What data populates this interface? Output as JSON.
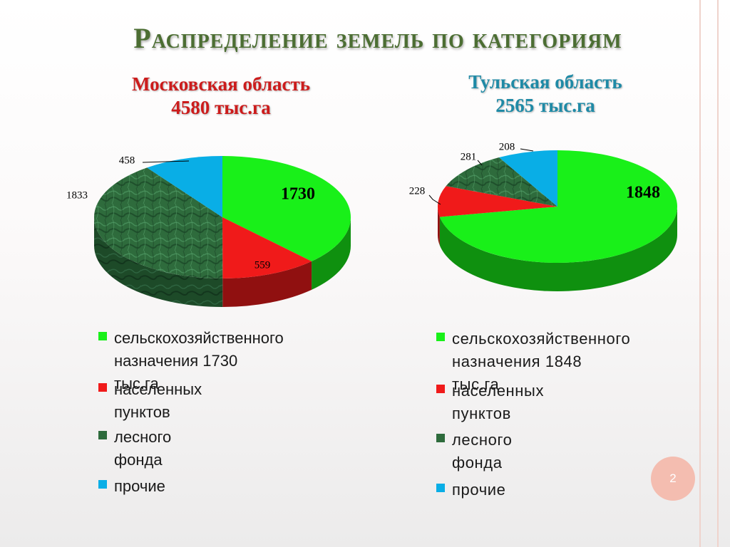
{
  "slide": {
    "title": "Распределение земель по категориям",
    "page_number": "2",
    "colors": {
      "title": "#4c6e33",
      "moscow_title": "#cc1c1c",
      "tula_title": "#1f8aa6",
      "page_badge": "#f4bdb0"
    }
  },
  "chart_data": [
    {
      "type": "pie",
      "title": "Московская область",
      "subtitle": "4580 тыс.га",
      "categories": [
        "сельскохозяйственного назначения  1730 тыс.га",
        "населенных пунктов",
        "лесного фонда",
        "прочие"
      ],
      "values": [
        1730,
        559,
        1833,
        458
      ],
      "data_labels": [
        "1730",
        "559",
        "1833",
        "458"
      ],
      "colors": [
        "#19f019",
        "#f01a1a",
        "#2f6a3c",
        "#09aee6"
      ],
      "legend_placement": "bottom"
    },
    {
      "type": "pie",
      "title": "Тульская область",
      "subtitle": "2565 тыс.га",
      "categories": [
        "сельскохозяйственного назначения 1848 тыс.га",
        "населенных пунктов",
        "лесного фонда",
        "прочие"
      ],
      "values": [
        1848,
        228,
        281,
        208
      ],
      "data_labels": [
        "1848",
        "228",
        "281",
        "208"
      ],
      "colors": [
        "#19f019",
        "#f01a1a",
        "#2f6a3c",
        "#09aee6"
      ],
      "legend_placement": "bottom"
    }
  ],
  "legends": {
    "moscow": [
      {
        "line1": "сельскохозяйственного",
        "line2": "назначения  1730 тыс.га"
      },
      {
        "line1": "населенных пунктов",
        "line2": ""
      },
      {
        "line1": "лесного фонда",
        "line2": ""
      },
      {
        "line1": "прочие",
        "line2": ""
      }
    ],
    "tula": [
      {
        "line1": "сельскохозяйственного",
        "line2": "назначения 1848 тыс.га"
      },
      {
        "line1": "населенных пунктов",
        "line2": ""
      },
      {
        "line1": "лесного фонда",
        "line2": ""
      },
      {
        "line1": "прочие",
        "line2": ""
      }
    ]
  }
}
